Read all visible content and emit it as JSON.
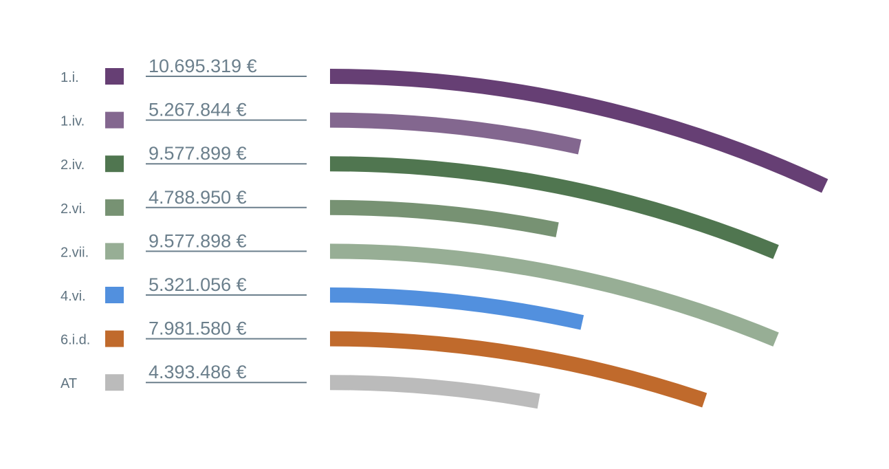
{
  "chart_data": {
    "type": "arc-bar",
    "categories": [
      "1.i.",
      "1.iv.",
      "2.iv.",
      "2.vi.",
      "2.vii.",
      "4.vi.",
      "6.i.d.",
      "AT"
    ],
    "values": [
      10695319,
      5267844,
      9577899,
      4788950,
      9577898,
      5321056,
      7981580,
      4393486
    ],
    "value_labels": [
      "10.695.319 €",
      "5.267.844 €",
      "9.577.899 €",
      "4.788.950 €",
      "9.577.898 €",
      "5.321.056 €",
      "7.981.580 €",
      "4.393.486 €"
    ],
    "colors": [
      "#663f74",
      "#83678f",
      "#507650",
      "#779273",
      "#97ae95",
      "#5290de",
      "#c06a2c",
      "#bbbbbb"
    ]
  }
}
